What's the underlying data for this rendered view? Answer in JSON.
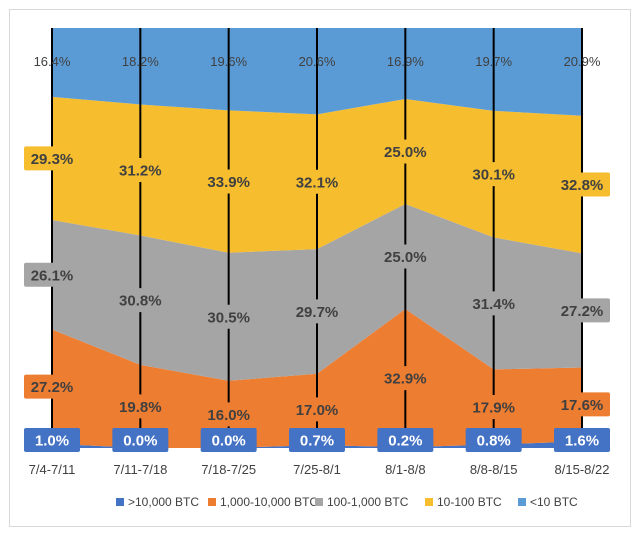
{
  "chart_data": {
    "type": "area",
    "stacked": true,
    "title": "",
    "xlabel": "",
    "ylabel": "",
    "ylim": [
      0,
      100
    ],
    "categories": [
      "7/4-7/11",
      "7/11-7/18",
      "7/18-7/25",
      "7/25-8/1",
      "8/1-8/8",
      "8/8-8/15",
      "8/15-8/22"
    ],
    "series": [
      {
        "name": ">10,000 BTC",
        "color": "#4472c4",
        "values": [
          1.0,
          0.0,
          0.0,
          0.7,
          0.2,
          0.8,
          1.6
        ],
        "labels": [
          "1.0%",
          "0.0%",
          "0.0%",
          "0.7%",
          "0.2%",
          "0.8%",
          "1.6%"
        ],
        "label_style": "box-dark"
      },
      {
        "name": "1,000-10,000 BTC",
        "color": "#ed7d31",
        "values": [
          27.2,
          19.8,
          16.0,
          17.0,
          32.9,
          17.9,
          17.6
        ],
        "labels": [
          "27.2%",
          "19.8%",
          "16.0%",
          "17.0%",
          "32.9%",
          "17.9%",
          "17.6%"
        ],
        "label_style": "box"
      },
      {
        "name": "100-1,000 BTC",
        "color": "#a5a5a5",
        "values": [
          26.1,
          30.8,
          30.5,
          29.7,
          25.0,
          31.4,
          27.2
        ],
        "labels": [
          "26.1%",
          "30.8%",
          "30.5%",
          "29.7%",
          "25.0%",
          "31.4%",
          "27.2%"
        ],
        "label_style": "box"
      },
      {
        "name": "10-100 BTC",
        "color": "#f6bd2f",
        "values": [
          29.3,
          31.2,
          33.9,
          32.1,
          25.0,
          30.1,
          32.8
        ],
        "labels": [
          "29.3%",
          "31.2%",
          "33.9%",
          "32.1%",
          "25.0%",
          "30.1%",
          "32.8%"
        ],
        "label_style": "box"
      },
      {
        "name": "<10 BTC",
        "color": "#5b9bd5",
        "values": [
          16.4,
          18.2,
          19.6,
          20.6,
          16.9,
          19.7,
          20.9
        ],
        "labels": [
          "16.4%",
          "18.2%",
          "19.6%",
          "20.6%",
          "16.9%",
          "19.7%",
          "20.9%"
        ],
        "label_style": "plain"
      }
    ],
    "legend_position": "bottom",
    "grid": false,
    "vertical_markers": true
  }
}
